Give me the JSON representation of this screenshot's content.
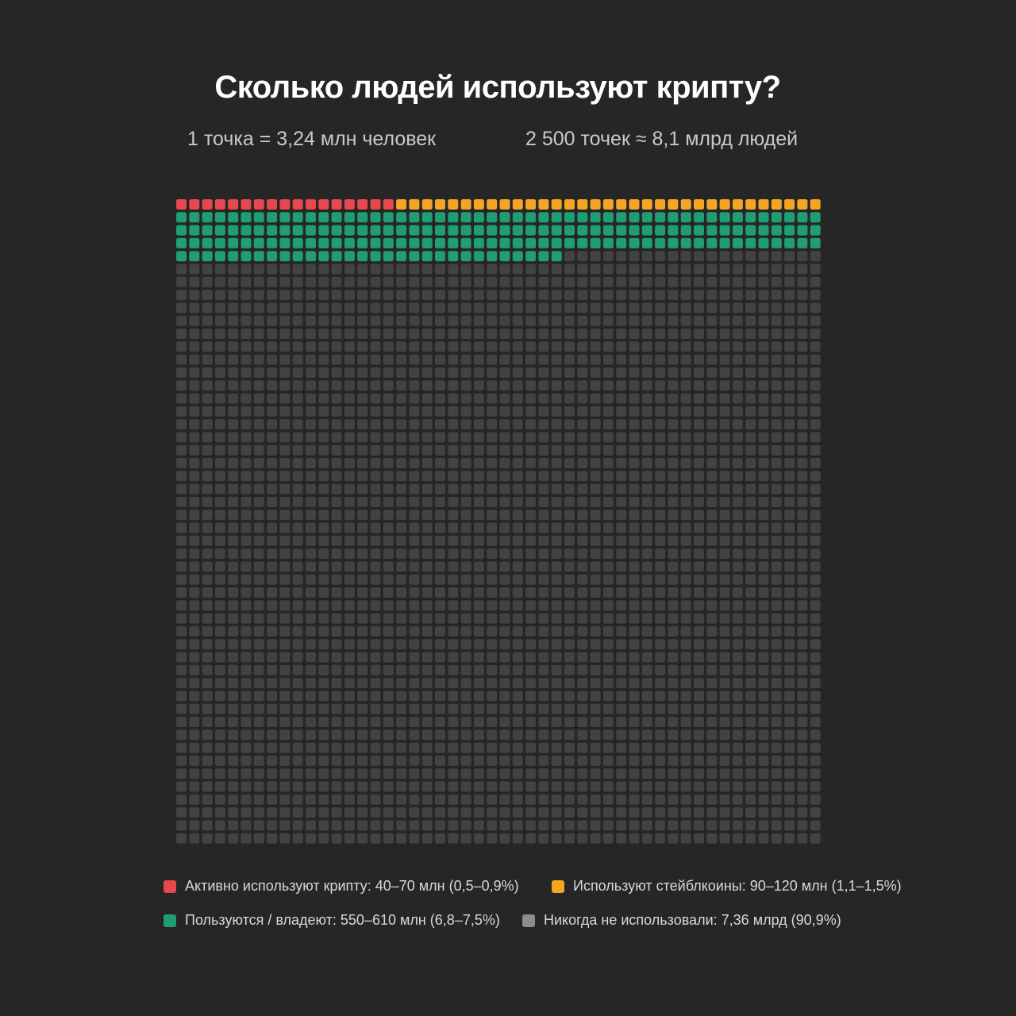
{
  "chart_data": {
    "type": "waffle",
    "title": "Сколько людей используют крипту?",
    "subtitle_left": "1 точка = 3,24 млн человек",
    "subtitle_right": "2 500 точек ≈ 8,1 млрд людей",
    "grid": {
      "columns": 50,
      "rows": 50,
      "total_dots": 2500
    },
    "fill_order": "row-major, top-left first",
    "series": [
      {
        "key": "active",
        "label": "Активно используют крипту: 40–70 млн (0,5–0,9%)",
        "dots": 17,
        "color": "#e5484d"
      },
      {
        "key": "stable",
        "label": "Используют стейблкоины: 90–120 млн (1,1–1,5%)",
        "dots": 33,
        "color": "#f5a524"
      },
      {
        "key": "own",
        "label": "Пользуются / владеют: 550–610 млн (6,8–7,5%)",
        "dots": 180,
        "color": "#1f9e73"
      },
      {
        "key": "never",
        "label": "Никогда не использовали: 7,36 млрд (90,9%)",
        "dots": 2270,
        "color": "#424242"
      }
    ],
    "legend_swatch_colors": {
      "active": "#e5484d",
      "stable": "#f5a524",
      "own": "#1f9e73",
      "never": "#8c8c8c"
    }
  }
}
